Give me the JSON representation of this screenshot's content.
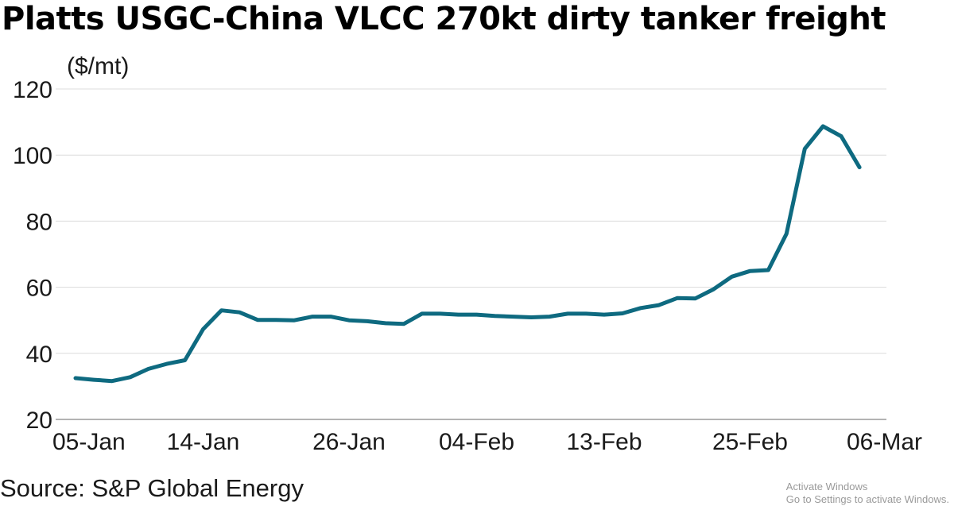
{
  "chart_data": {
    "type": "line",
    "title": "Platts USGC-China VLCC 270kt dirty tanker freight",
    "ylabel": "($/mt)",
    "ylim": [
      20,
      120
    ],
    "yticks": [
      20,
      40,
      60,
      80,
      100,
      120
    ],
    "xticks": [
      "05-Jan",
      "14-Jan",
      "26-Jan",
      "04-Feb",
      "13-Feb",
      "25-Feb",
      "06-Mar"
    ],
    "grid": true,
    "line_color": "#0e6a80",
    "source": "Source: S&P Global Energy",
    "series": [
      {
        "x": [
          "05-Jan",
          "06-Jan",
          "07-Jan",
          "08-Jan",
          "09-Jan",
          "12-Jan",
          "13-Jan",
          "14-Jan",
          "15-Jan",
          "16-Jan",
          "19-Jan",
          "20-Jan",
          "21-Jan",
          "22-Jan",
          "23-Jan",
          "26-Jan",
          "27-Jan",
          "28-Jan",
          "29-Jan",
          "30-Jan",
          "02-Feb",
          "03-Feb",
          "04-Feb",
          "05-Feb",
          "06-Feb",
          "09-Feb",
          "10-Feb",
          "11-Feb",
          "12-Feb",
          "13-Feb",
          "16-Feb",
          "17-Feb",
          "18-Feb",
          "19-Feb",
          "20-Feb",
          "23-Feb",
          "24-Feb",
          "25-Feb",
          "26-Feb",
          "27-Feb",
          "02-Mar",
          "03-Mar",
          "04-Mar",
          "05-Mar",
          "06-Mar"
        ],
        "values": [
          32.5,
          32,
          31.6,
          32.8,
          35.3,
          36.8,
          37.9,
          47.3,
          53,
          52.4,
          50.1,
          50.1,
          50,
          51.1,
          51.1,
          50,
          49.7,
          49.1,
          48.9,
          52,
          52,
          51.7,
          51.7,
          51.3,
          51.1,
          50.9,
          51.1,
          52,
          52,
          51.7,
          52.1,
          53.7,
          54.6,
          56.7,
          56.6,
          59.4,
          63.2,
          64.9,
          65.2,
          76.2,
          101.9,
          108.7,
          105.7,
          96.3,
          null
        ]
      }
    ]
  },
  "watermark": {
    "line1": "Activate Windows",
    "line2": "Go to Settings to activate Windows."
  }
}
